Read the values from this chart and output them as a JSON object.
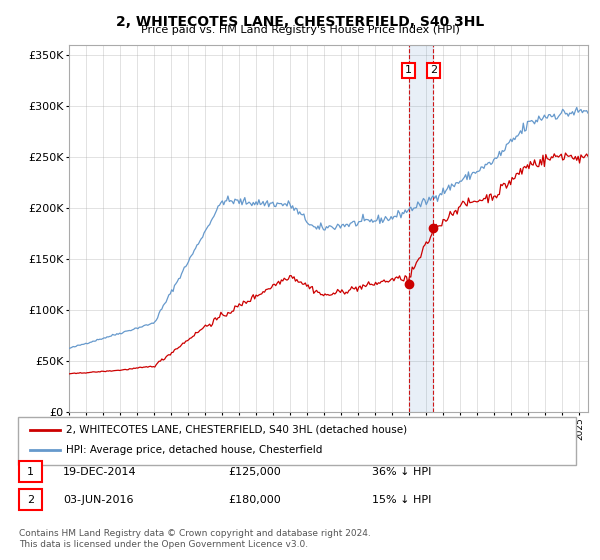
{
  "title": "2, WHITECOTES LANE, CHESTERFIELD, S40 3HL",
  "subtitle": "Price paid vs. HM Land Registry's House Price Index (HPI)",
  "legend_entry1": "2, WHITECOTES LANE, CHESTERFIELD, S40 3HL (detached house)",
  "legend_entry2": "HPI: Average price, detached house, Chesterfield",
  "annotation1_date": "19-DEC-2014",
  "annotation1_price": "£125,000",
  "annotation1_hpi": "36% ↓ HPI",
  "annotation2_date": "03-JUN-2016",
  "annotation2_price": "£180,000",
  "annotation2_hpi": "15% ↓ HPI",
  "footer": "Contains HM Land Registry data © Crown copyright and database right 2024.\nThis data is licensed under the Open Government Licence v3.0.",
  "red_color": "#cc0000",
  "blue_color": "#6699cc",
  "background_color": "#ffffff",
  "grid_color": "#aaaaaa",
  "sale1_year": 2014.96,
  "sale1_price": 125000,
  "sale2_year": 2016.42,
  "sale2_price": 180000,
  "ylim": [
    0,
    360000
  ],
  "xlim_start": 1995,
  "xlim_end": 2025.5
}
